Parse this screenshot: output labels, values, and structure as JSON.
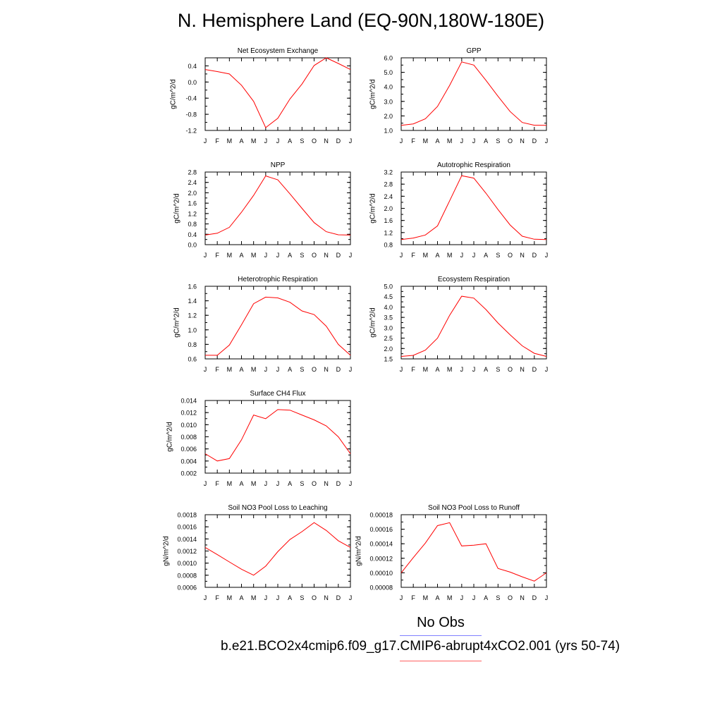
{
  "figure": {
    "title": "N. Hemisphere Land (EQ-90N,180W-180E)",
    "legend": [
      {
        "label": "No Obs",
        "color": "#8080ff"
      },
      {
        "label": "b.e21.BCO2x4cmip6.f09_g17.CMIP6-abrupt4xCO2.001 (yrs 50-74)",
        "color": "#ff0000"
      }
    ]
  },
  "chart_data": [
    {
      "type": "line",
      "title": "Net Ecosystem Exchange",
      "ylabel": "gC/m^2/d",
      "categories": [
        "J",
        "F",
        "M",
        "A",
        "M",
        "J",
        "J",
        "A",
        "S",
        "O",
        "N",
        "D",
        "J"
      ],
      "ylim": [
        -1.2,
        0.6
      ],
      "yticks": [
        "0.4",
        "0.0",
        "-0.4",
        "-0.8",
        "-1.2"
      ],
      "series": [
        {
          "color": "#ff0000",
          "values": [
            0.31,
            0.26,
            0.2,
            -0.08,
            -0.48,
            -1.13,
            -0.9,
            -0.42,
            -0.05,
            0.41,
            0.6,
            0.46,
            0.31
          ]
        }
      ]
    },
    {
      "type": "line",
      "title": "GPP",
      "ylabel": "gC/m^2/d",
      "categories": [
        "J",
        "F",
        "M",
        "A",
        "M",
        "J",
        "J",
        "A",
        "S",
        "O",
        "N",
        "D",
        "J"
      ],
      "ylim": [
        1.0,
        6.0
      ],
      "yticks": [
        "6.0",
        "5.0",
        "4.0",
        "3.0",
        "2.0",
        "1.0"
      ],
      "series": [
        {
          "color": "#ff0000",
          "values": [
            1.35,
            1.45,
            1.8,
            2.65,
            4.1,
            5.72,
            5.5,
            4.45,
            3.35,
            2.3,
            1.55,
            1.36,
            1.35
          ]
        }
      ]
    },
    {
      "type": "line",
      "title": "NPP",
      "ylabel": "gC/m^2/d",
      "categories": [
        "J",
        "F",
        "M",
        "A",
        "M",
        "J",
        "J",
        "A",
        "S",
        "O",
        "N",
        "D",
        "J"
      ],
      "ylim": [
        0.0,
        2.8
      ],
      "yticks": [
        "2.8",
        "2.4",
        "2.0",
        "1.6",
        "1.2",
        "0.8",
        "0.4",
        "0.0"
      ],
      "series": [
        {
          "color": "#ff0000",
          "values": [
            0.37,
            0.44,
            0.67,
            1.25,
            1.9,
            2.65,
            2.5,
            1.96,
            1.4,
            0.85,
            0.5,
            0.38,
            0.37
          ]
        }
      ]
    },
    {
      "type": "line",
      "title": "Autotrophic Respiration",
      "ylabel": "gC/m^2/d",
      "categories": [
        "J",
        "F",
        "M",
        "A",
        "M",
        "J",
        "J",
        "A",
        "S",
        "O",
        "N",
        "D",
        "J"
      ],
      "ylim": [
        0.8,
        3.2
      ],
      "yticks": [
        "3.2",
        "2.8",
        "2.4",
        "2.0",
        "1.6",
        "1.2",
        "0.8"
      ],
      "series": [
        {
          "color": "#ff0000",
          "values": [
            0.97,
            1.02,
            1.12,
            1.42,
            2.25,
            3.08,
            3.0,
            2.5,
            1.96,
            1.45,
            1.08,
            0.98,
            0.97
          ]
        }
      ]
    },
    {
      "type": "line",
      "title": "Heterotrophic Respiration",
      "ylabel": "gC/m^2/d",
      "categories": [
        "J",
        "F",
        "M",
        "A",
        "M",
        "J",
        "J",
        "A",
        "S",
        "O",
        "N",
        "D",
        "J"
      ],
      "ylim": [
        0.6,
        1.6
      ],
      "yticks": [
        "1.6",
        "1.4",
        "1.2",
        "1.0",
        "0.8",
        "0.6"
      ],
      "series": [
        {
          "color": "#ff0000",
          "values": [
            0.65,
            0.65,
            0.79,
            1.07,
            1.36,
            1.45,
            1.44,
            1.38,
            1.26,
            1.21,
            1.05,
            0.8,
            0.65
          ]
        }
      ]
    },
    {
      "type": "line",
      "title": "Ecosystem Respiration",
      "ylabel": "gC/m^2/d",
      "categories": [
        "J",
        "F",
        "M",
        "A",
        "M",
        "J",
        "J",
        "A",
        "S",
        "O",
        "N",
        "D",
        "J"
      ],
      "ylim": [
        1.5,
        5.0
      ],
      "yticks": [
        "5.0",
        "4.5",
        "4.0",
        "3.5",
        "3.0",
        "2.5",
        "2.0",
        "1.5"
      ],
      "series": [
        {
          "color": "#ff0000",
          "values": [
            1.62,
            1.67,
            1.92,
            2.5,
            3.6,
            4.52,
            4.43,
            3.88,
            3.23,
            2.66,
            2.13,
            1.77,
            1.62
          ]
        }
      ]
    },
    {
      "type": "line",
      "title": "Surface CH4 Flux",
      "ylabel": "gC/m^2/d",
      "categories": [
        "J",
        "F",
        "M",
        "A",
        "M",
        "J",
        "J",
        "A",
        "S",
        "O",
        "N",
        "D",
        "J"
      ],
      "ylim": [
        0.002,
        0.014
      ],
      "yticks": [
        "0.014",
        "0.012",
        "0.010",
        "0.008",
        "0.006",
        "0.004",
        "0.002"
      ],
      "series": [
        {
          "color": "#ff0000",
          "values": [
            0.0052,
            0.004,
            0.0044,
            0.0075,
            0.0116,
            0.011,
            0.0125,
            0.0124,
            0.0116,
            0.0108,
            0.0098,
            0.008,
            0.0052
          ]
        }
      ]
    },
    {
      "type": "line",
      "title": "Soil NO3 Pool Loss to Leaching",
      "ylabel": "gN/m^2/d",
      "categories": [
        "J",
        "F",
        "M",
        "A",
        "M",
        "J",
        "J",
        "A",
        "S",
        "O",
        "N",
        "D",
        "J"
      ],
      "ylim": [
        0.0006,
        0.0018
      ],
      "yticks": [
        "0.0018",
        "0.0016",
        "0.0014",
        "0.0012",
        "0.0010",
        "0.0008",
        "0.0006"
      ],
      "series": [
        {
          "color": "#ff0000",
          "values": [
            0.00126,
            0.00114,
            0.00102,
            0.0009,
            0.0008,
            0.00095,
            0.00119,
            0.00139,
            0.00152,
            0.00167,
            0.00154,
            0.00137,
            0.00126
          ]
        }
      ]
    },
    {
      "type": "line",
      "title": "Soil NO3 Pool Loss to Runoff",
      "ylabel": "gN/m^2/d",
      "categories": [
        "J",
        "F",
        "M",
        "A",
        "M",
        "J",
        "J",
        "A",
        "S",
        "O",
        "N",
        "D",
        "J"
      ],
      "ylim": [
        8e-05,
        0.00018
      ],
      "yticks": [
        "0.00018",
        "0.00016",
        "0.00014",
        "0.00012",
        "0.00010",
        "0.00008"
      ],
      "series": [
        {
          "color": "#ff0000",
          "values": [
            0.0001,
            0.000121,
            0.000141,
            0.000165,
            0.000169,
            0.000137,
            0.000138,
            0.00014,
            0.000106,
            0.000101,
            9.45e-05,
            8.85e-05,
            0.0001
          ]
        }
      ]
    }
  ]
}
